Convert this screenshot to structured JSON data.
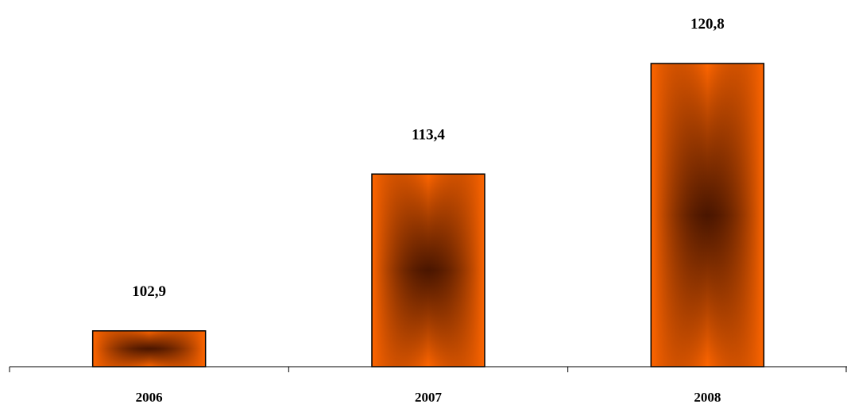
{
  "chart_data": {
    "type": "bar",
    "categories": [
      "2006",
      "2007",
      "2008"
    ],
    "values": [
      102.9,
      113.4,
      120.8
    ],
    "value_labels": [
      "102,9",
      "113,4",
      "120,8"
    ],
    "ylim": [
      100.5,
      120.8
    ],
    "grid": false,
    "legend": "none",
    "colors": {
      "bar_light": "#ff6600",
      "bar_dark": "#4a1600",
      "bar_border": "#000000",
      "axis": "#000000"
    }
  }
}
